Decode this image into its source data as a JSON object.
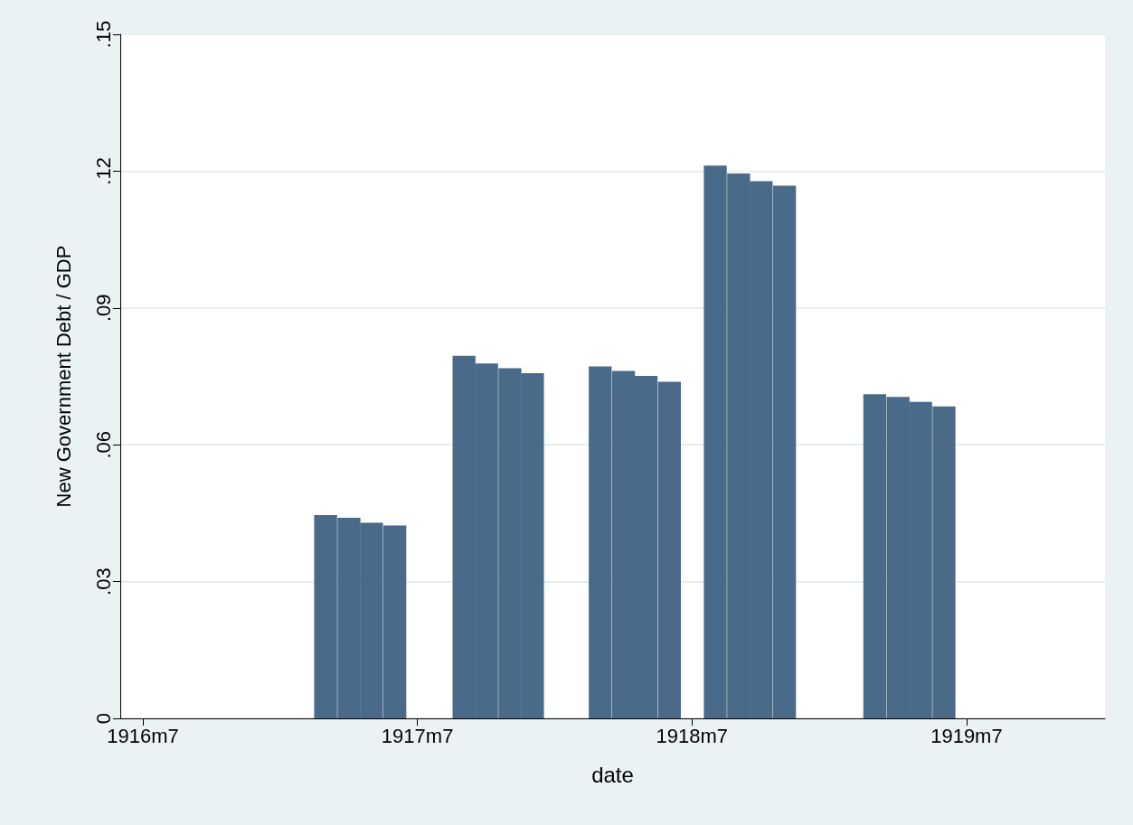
{
  "chart_data": {
    "type": "bar",
    "xlabel": "date",
    "ylabel": "New Government Debt / GDP",
    "x": [
      "1917-03",
      "1917-04",
      "1917-05",
      "1917-06",
      "1917-09",
      "1917-10",
      "1917-11",
      "1917-12",
      "1918-03",
      "1918-04",
      "1918-05",
      "1918-06",
      "1918-08",
      "1918-09",
      "1918-10",
      "1918-11",
      "1919-03",
      "1919-04",
      "1919-05",
      "1919-06"
    ],
    "values": [
      0.0446,
      0.044,
      0.0429,
      0.0423,
      0.0795,
      0.0778,
      0.0768,
      0.0757,
      0.0772,
      0.0762,
      0.0751,
      0.0738,
      0.1212,
      0.1195,
      0.1178,
      0.1168,
      0.0711,
      0.0705,
      0.0694,
      0.0684
    ],
    "color": "#4a6a8a",
    "xlim": [
      "1916-06",
      "1920-01"
    ],
    "xticks": [
      {
        "value": "1916-07",
        "label": "1916m7"
      },
      {
        "value": "1917-07",
        "label": "1917m7"
      },
      {
        "value": "1918-07",
        "label": "1918m7"
      },
      {
        "value": "1919-07",
        "label": "1919m7"
      }
    ],
    "ylim": [
      0,
      0.15
    ],
    "yticks": [
      0,
      {
        "value": 0.03,
        "label": ".03"
      },
      {
        "value": 0.06,
        "label": ".06"
      },
      {
        "value": 0.09,
        "label": ".09"
      },
      {
        "value": 0.12,
        "label": ".12"
      },
      {
        "value": 0.15,
        "label": ".15"
      }
    ],
    "grid": "y"
  }
}
